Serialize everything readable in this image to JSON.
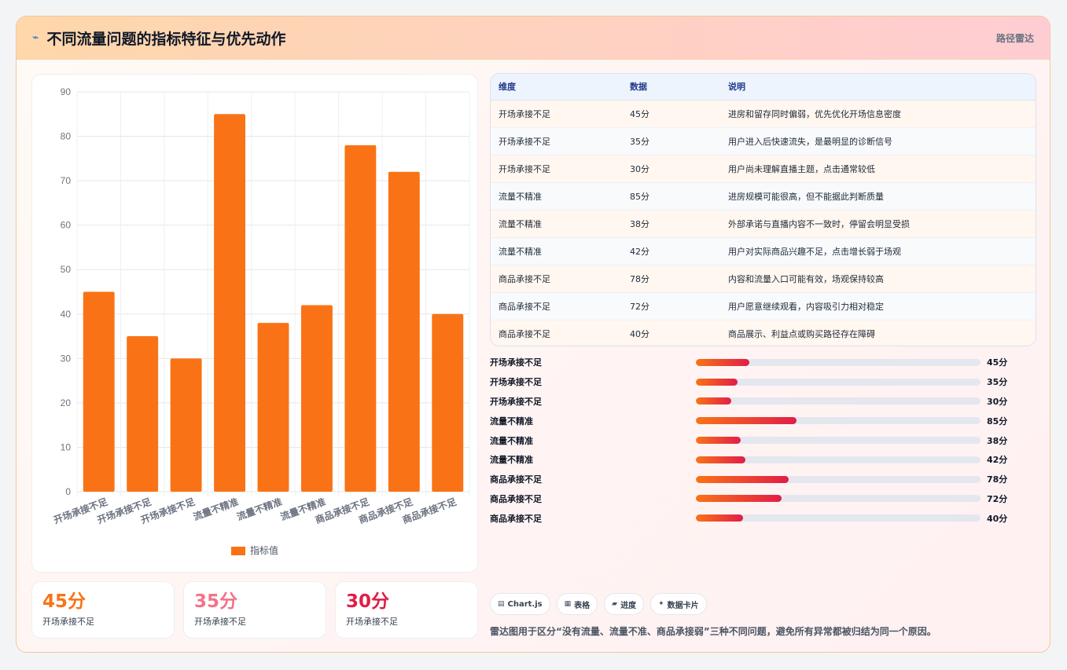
{
  "header": {
    "icon": "lightning-icon",
    "title": "不同流量问题的指标特征与优先动作",
    "link": "路径雷达"
  },
  "chart_data": {
    "type": "bar",
    "categories": [
      "开场承接不足",
      "开场承接不足",
      "开场承接不足",
      "流量不精准",
      "流量不精准",
      "流量不精准",
      "商品承接不足",
      "商品承接不足",
      "商品承接不足"
    ],
    "series": [
      {
        "name": "指标值",
        "values": [
          45,
          35,
          30,
          85,
          38,
          42,
          78,
          72,
          40
        ]
      }
    ],
    "ylim": [
      0,
      90
    ],
    "yticks": [
      0,
      10,
      20,
      30,
      40,
      50,
      60,
      70,
      80,
      90
    ],
    "grid": true,
    "legend": "bottom",
    "bar_color": "#f97316"
  },
  "stats": [
    {
      "value": "45分",
      "label": "开场承接不足",
      "color": "#f97316"
    },
    {
      "value": "35分",
      "label": "开场承接不足",
      "color": "#f4728a"
    },
    {
      "value": "30分",
      "label": "开场承接不足",
      "color": "#e11d48"
    }
  ],
  "table": {
    "headers": [
      "维度",
      "数据",
      "说明"
    ],
    "rows": [
      [
        "开场承接不足",
        "45分",
        "进房和留存同时偏弱，优先优化开场信息密度"
      ],
      [
        "开场承接不足",
        "35分",
        "用户进入后快速流失，是最明显的诊断信号"
      ],
      [
        "开场承接不足",
        "30分",
        "用户尚未理解直播主题，点击通常较低"
      ],
      [
        "流量不精准",
        "85分",
        "进房规模可能很高，但不能据此判断质量"
      ],
      [
        "流量不精准",
        "38分",
        "外部承诺与直播内容不一致时，停留会明显受损"
      ],
      [
        "流量不精准",
        "42分",
        "用户对实际商品兴趣不足，点击增长弱于场观"
      ],
      [
        "商品承接不足",
        "78分",
        "内容和流量入口可能有效，场观保持较高"
      ],
      [
        "商品承接不足",
        "72分",
        "用户愿意继续观看，内容吸引力相对稳定"
      ],
      [
        "商品承接不足",
        "40分",
        "商品展示、利益点或购买路径存在障碍"
      ]
    ]
  },
  "progress": {
    "max": 240,
    "items": [
      {
        "label": "开场承接不足",
        "value": 45,
        "text": "45分"
      },
      {
        "label": "开场承接不足",
        "value": 35,
        "text": "35分"
      },
      {
        "label": "开场承接不足",
        "value": 30,
        "text": "30分"
      },
      {
        "label": "流量不精准",
        "value": 85,
        "text": "85分"
      },
      {
        "label": "流量不精准",
        "value": 38,
        "text": "38分"
      },
      {
        "label": "流量不精准",
        "value": 42,
        "text": "42分"
      },
      {
        "label": "商品承接不足",
        "value": 78,
        "text": "78分"
      },
      {
        "label": "商品承接不足",
        "value": 72,
        "text": "72分"
      },
      {
        "label": "商品承接不足",
        "value": 40,
        "text": "40分"
      }
    ]
  },
  "chips": [
    {
      "icon": "chart-icon",
      "glyph": "▤",
      "label": "Chart.js"
    },
    {
      "icon": "table-icon",
      "glyph": "▦",
      "label": "表格"
    },
    {
      "icon": "progress-icon",
      "glyph": "▰",
      "label": "进度"
    },
    {
      "icon": "sparkle-icon",
      "glyph": "✦",
      "label": "数据卡片"
    }
  ],
  "note": "雷达图用于区分“没有流量、流量不准、商品承接弱”三种不同问题，避免所有异常都被归结为同一个原因。"
}
